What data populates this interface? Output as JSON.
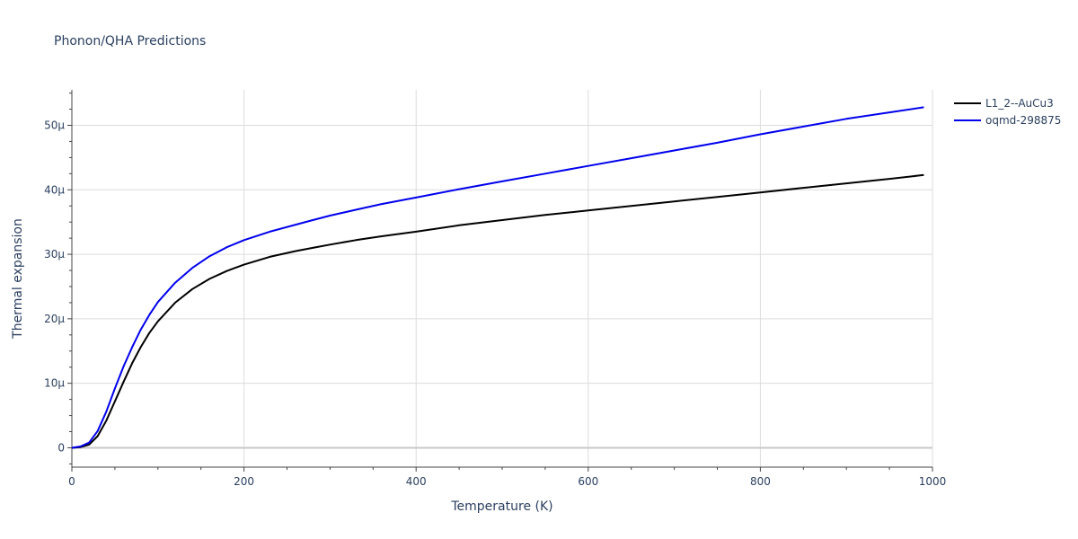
{
  "chart_data": {
    "type": "line",
    "title": "Phonon/QHA Predictions",
    "xlabel": "Temperature (K)",
    "ylabel": "Thermal expansion",
    "xlim": [
      0,
      1000
    ],
    "ylim": [
      -3e-06,
      5.55e-05
    ],
    "x_ticks": [
      0,
      200,
      400,
      600,
      800,
      1000
    ],
    "x_tick_labels": [
      "0",
      "200",
      "400",
      "600",
      "800",
      "1000"
    ],
    "y_ticks": [
      0,
      1e-05,
      2e-05,
      3e-05,
      4e-05,
      5e-05
    ],
    "y_tick_labels": [
      "0",
      "10μ",
      "20μ",
      "30μ",
      "40μ",
      "50μ"
    ],
    "grid": true,
    "legend_position": "top-right",
    "series": [
      {
        "name": "L1_2--AuCu3",
        "color": "#000000",
        "x": [
          0,
          10,
          20,
          30,
          40,
          50,
          60,
          70,
          80,
          90,
          100,
          120,
          140,
          160,
          180,
          200,
          230,
          260,
          280,
          300,
          330,
          360,
          400,
          450,
          500,
          550,
          600,
          650,
          700,
          750,
          800,
          850,
          900,
          950,
          990
        ],
        "y": [
          0,
          1e-07,
          5e-07,
          1.8e-06,
          4.2e-06,
          7.2e-06,
          1.02e-05,
          1.31e-05,
          1.56e-05,
          1.78e-05,
          1.96e-05,
          2.25e-05,
          2.46e-05,
          2.62e-05,
          2.74e-05,
          2.84e-05,
          2.96e-05,
          3.05e-05,
          3.1e-05,
          3.15e-05,
          3.22e-05,
          3.28e-05,
          3.35e-05,
          3.45e-05,
          3.53e-05,
          3.61e-05,
          3.68e-05,
          3.75e-05,
          3.82e-05,
          3.89e-05,
          3.96e-05,
          4.03e-05,
          4.1e-05,
          4.17e-05,
          4.23e-05
        ]
      },
      {
        "name": "oqmd-298875",
        "color": "#0000ee",
        "x": [
          0,
          10,
          20,
          30,
          40,
          50,
          60,
          70,
          80,
          90,
          100,
          120,
          140,
          160,
          180,
          200,
          230,
          260,
          280,
          300,
          330,
          360,
          400,
          450,
          500,
          550,
          600,
          650,
          700,
          750,
          800,
          850,
          900,
          950,
          990
        ],
        "y": [
          0,
          2e-07,
          8e-07,
          2.6e-06,
          5.6e-06,
          9.2e-06,
          1.26e-05,
          1.56e-05,
          1.83e-05,
          2.06e-05,
          2.26e-05,
          2.56e-05,
          2.79e-05,
          2.97e-05,
          3.11e-05,
          3.22e-05,
          3.35e-05,
          3.46e-05,
          3.53e-05,
          3.6e-05,
          3.69e-05,
          3.78e-05,
          3.88e-05,
          4.01e-05,
          4.13e-05,
          4.25e-05,
          4.37e-05,
          4.49e-05,
          4.61e-05,
          4.73e-05,
          4.86e-05,
          4.98e-05,
          5.1e-05,
          5.2e-05,
          5.28e-05
        ]
      }
    ]
  }
}
